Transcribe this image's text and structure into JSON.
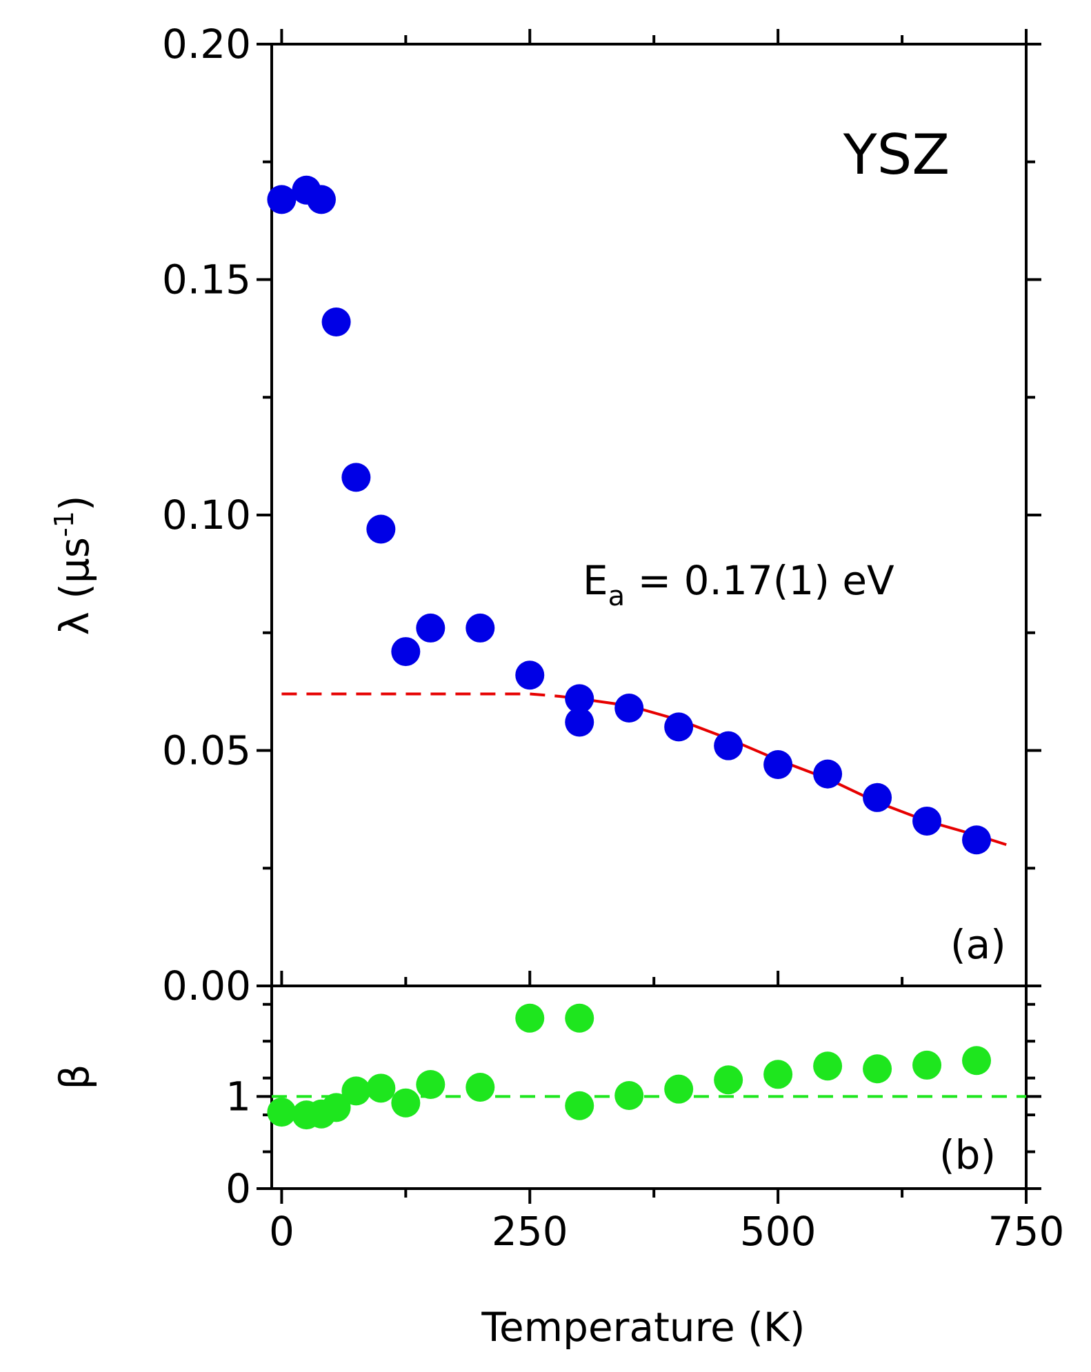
{
  "chart_data": [
    {
      "panel": "a",
      "type": "scatter",
      "panel_label": "(a)",
      "title_annotation": "YSZ",
      "ylabel_main": "λ (μs",
      "ylabel_sup": "-1",
      "ylabel_close": ")",
      "fit_annotation_main": "E",
      "fit_annotation_sub": "a",
      "fit_annotation_rest": " = 0.17(1) eV",
      "xlim": [
        -10,
        750
      ],
      "ylim": [
        0.0,
        0.2
      ],
      "yticks": [
        0.0,
        0.05,
        0.1,
        0.15,
        0.2
      ],
      "ytick_labels": [
        "0.00",
        "0.05",
        "0.10",
        "0.15",
        "0.20"
      ],
      "series": [
        {
          "name": "lambda",
          "color": "#0000e6",
          "x": [
            0,
            25,
            40,
            55,
            75,
            100,
            125,
            150,
            200,
            250,
            300,
            300,
            350,
            400,
            450,
            500,
            550,
            600,
            650,
            700
          ],
          "y": [
            0.167,
            0.169,
            0.167,
            0.141,
            0.108,
            0.097,
            0.071,
            0.076,
            0.076,
            0.066,
            0.061,
            0.056,
            0.059,
            0.055,
            0.051,
            0.047,
            0.045,
            0.04,
            0.035,
            0.031
          ]
        },
        {
          "name": "fit-dashed",
          "color": "#e60000",
          "style": "dashed",
          "x": [
            0,
            50,
            100,
            150,
            200,
            250,
            280,
            300
          ],
          "y": [
            0.062,
            0.062,
            0.062,
            0.062,
            0.062,
            0.062,
            0.0615,
            0.061
          ]
        },
        {
          "name": "fit-solid",
          "color": "#e60000",
          "style": "solid",
          "x": [
            300,
            350,
            400,
            450,
            500,
            550,
            600,
            650,
            700,
            730
          ],
          "y": [
            0.061,
            0.0595,
            0.0565,
            0.0525,
            0.048,
            0.044,
            0.039,
            0.035,
            0.032,
            0.03
          ]
        }
      ]
    },
    {
      "panel": "b",
      "type": "scatter",
      "panel_label": "(b)",
      "ylabel": "β",
      "xlabel": "Temperature (K)",
      "xlim": [
        -10,
        750
      ],
      "ylim": [
        0,
        2.2
      ],
      "xticks": [
        0,
        250,
        500,
        750
      ],
      "xtick_labels": [
        "0",
        "250",
        "500",
        "750"
      ],
      "yticks": [
        0,
        1
      ],
      "ytick_labels": [
        "0",
        "1"
      ],
      "series": [
        {
          "name": "beta",
          "color": "#1ee61e",
          "x": [
            0,
            25,
            40,
            55,
            75,
            100,
            125,
            150,
            200,
            250,
            300,
            300,
            350,
            400,
            450,
            500,
            550,
            600,
            650,
            700
          ],
          "y": [
            0.83,
            0.8,
            0.81,
            0.88,
            1.06,
            1.09,
            0.93,
            1.13,
            1.1,
            1.85,
            1.85,
            0.9,
            1.01,
            1.08,
            1.18,
            1.24,
            1.33,
            1.3,
            1.34,
            1.39
          ]
        },
        {
          "name": "beta-one-reference",
          "color": "#1ee61e",
          "style": "dashed",
          "x": [
            -10,
            750
          ],
          "y": [
            1,
            1
          ]
        }
      ]
    }
  ]
}
